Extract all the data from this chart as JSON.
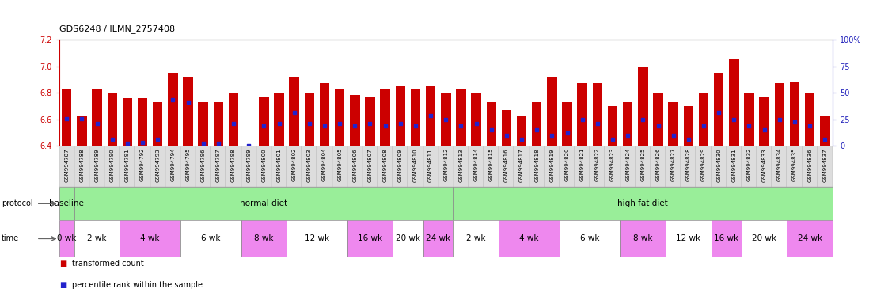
{
  "title": "GDS6248 / ILMN_2757408",
  "samples": [
    "GSM994787",
    "GSM994788",
    "GSM994789",
    "GSM994790",
    "GSM994791",
    "GSM994792",
    "GSM994793",
    "GSM994794",
    "GSM994795",
    "GSM994796",
    "GSM994797",
    "GSM994798",
    "GSM994799",
    "GSM994800",
    "GSM994801",
    "GSM994802",
    "GSM994803",
    "GSM994804",
    "GSM994805",
    "GSM994806",
    "GSM994807",
    "GSM994808",
    "GSM994809",
    "GSM994810",
    "GSM994811",
    "GSM994812",
    "GSM994813",
    "GSM994814",
    "GSM994815",
    "GSM994816",
    "GSM994817",
    "GSM994818",
    "GSM994819",
    "GSM994820",
    "GSM994821",
    "GSM994822",
    "GSM994823",
    "GSM994824",
    "GSM994825",
    "GSM994826",
    "GSM994827",
    "GSM994828",
    "GSM994829",
    "GSM994830",
    "GSM994831",
    "GSM994832",
    "GSM994833",
    "GSM994834",
    "GSM994835",
    "GSM994836",
    "GSM994837"
  ],
  "bar_values": [
    6.83,
    6.63,
    6.83,
    6.8,
    6.76,
    6.76,
    6.73,
    6.95,
    6.92,
    6.73,
    6.73,
    6.8,
    6.4,
    6.77,
    6.8,
    6.92,
    6.8,
    6.87,
    6.83,
    6.78,
    6.77,
    6.83,
    6.85,
    6.83,
    6.85,
    6.8,
    6.83,
    6.8,
    6.73,
    6.67,
    6.63,
    6.73,
    6.92,
    6.73,
    6.87,
    6.87,
    6.7,
    6.73,
    7.0,
    6.8,
    6.73,
    6.7,
    6.8,
    6.95,
    7.05,
    6.8,
    6.77,
    6.87,
    6.88,
    6.8,
    6.63
  ],
  "percentile_values": [
    6.605,
    6.603,
    6.57,
    6.45,
    6.42,
    6.425,
    6.45,
    6.75,
    6.73,
    6.42,
    6.42,
    6.57,
    6.4,
    6.55,
    6.57,
    6.65,
    6.57,
    6.55,
    6.57,
    6.55,
    6.57,
    6.55,
    6.57,
    6.55,
    6.63,
    6.6,
    6.55,
    6.57,
    6.52,
    6.48,
    6.45,
    6.52,
    6.48,
    6.5,
    6.6,
    6.57,
    6.45,
    6.48,
    6.6,
    6.55,
    6.48,
    6.45,
    6.55,
    6.65,
    6.6,
    6.55,
    6.52,
    6.6,
    6.58,
    6.55,
    6.45
  ],
  "ylim_left": [
    6.4,
    7.2
  ],
  "ylim_right": [
    0,
    100
  ],
  "yticks_left": [
    6.4,
    6.6,
    6.8,
    7.0,
    7.2
  ],
  "yticks_right": [
    0,
    25,
    50,
    75,
    100
  ],
  "bar_color": "#cc0000",
  "percentile_color": "#2222cc",
  "bar_width": 0.65,
  "time_groups": [
    {
      "label": "0 wk",
      "start": 0,
      "end": 1,
      "color": "#ee88ee"
    },
    {
      "label": "2 wk",
      "start": 1,
      "end": 4,
      "color": "#ffffff"
    },
    {
      "label": "4 wk",
      "start": 4,
      "end": 8,
      "color": "#ee88ee"
    },
    {
      "label": "6 wk",
      "start": 8,
      "end": 12,
      "color": "#ffffff"
    },
    {
      "label": "8 wk",
      "start": 12,
      "end": 15,
      "color": "#ee88ee"
    },
    {
      "label": "12 wk",
      "start": 15,
      "end": 19,
      "color": "#ffffff"
    },
    {
      "label": "16 wk",
      "start": 19,
      "end": 22,
      "color": "#ee88ee"
    },
    {
      "label": "20 wk",
      "start": 22,
      "end": 24,
      "color": "#ffffff"
    },
    {
      "label": "24 wk",
      "start": 24,
      "end": 26,
      "color": "#ee88ee"
    },
    {
      "label": "2 wk",
      "start": 26,
      "end": 29,
      "color": "#ffffff"
    },
    {
      "label": "4 wk",
      "start": 29,
      "end": 33,
      "color": "#ee88ee"
    },
    {
      "label": "6 wk",
      "start": 33,
      "end": 37,
      "color": "#ffffff"
    },
    {
      "label": "8 wk",
      "start": 37,
      "end": 40,
      "color": "#ee88ee"
    },
    {
      "label": "12 wk",
      "start": 40,
      "end": 43,
      "color": "#ffffff"
    },
    {
      "label": "16 wk",
      "start": 43,
      "end": 45,
      "color": "#ee88ee"
    },
    {
      "label": "20 wk",
      "start": 45,
      "end": 48,
      "color": "#ffffff"
    },
    {
      "label": "24 wk",
      "start": 48,
      "end": 51,
      "color": "#ee88ee"
    }
  ],
  "protocol_groups": [
    {
      "label": "baseline",
      "start": 0,
      "end": 1,
      "color": "#99ee99"
    },
    {
      "label": "normal diet",
      "start": 1,
      "end": 26,
      "color": "#99ee99"
    },
    {
      "label": "high fat diet",
      "start": 26,
      "end": 51,
      "color": "#99ee99"
    }
  ],
  "background_color": "#ffffff",
  "left_axis_color": "#cc0000",
  "right_axis_color": "#2222bb",
  "xticklabel_bg": "#dddddd"
}
